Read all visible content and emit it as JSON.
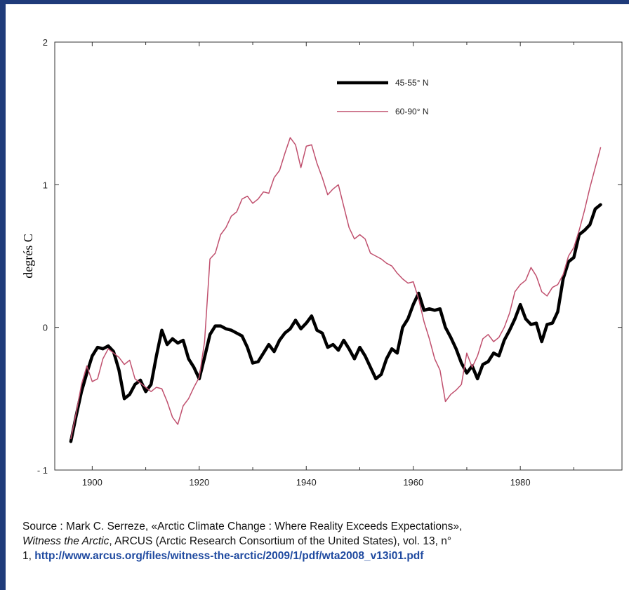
{
  "chart_data": {
    "type": "line",
    "title": "",
    "xlabel": "",
    "ylabel": "degrés C",
    "xlim": [
      1893,
      1999
    ],
    "ylim": [
      -1,
      2
    ],
    "x_ticks": [
      "1900",
      "1920",
      "1940",
      "1960",
      "1980"
    ],
    "y_ticks": [
      "- 1",
      "0",
      "1",
      "2"
    ],
    "legend_position": "top-right",
    "series": [
      {
        "name": "45-55° N",
        "color": "#000000",
        "style": "thick",
        "points": [
          [
            1896,
            -0.8
          ],
          [
            1897,
            -0.62
          ],
          [
            1898,
            -0.45
          ],
          [
            1899,
            -0.32
          ],
          [
            1900,
            -0.2
          ],
          [
            1901,
            -0.14
          ],
          [
            1902,
            -0.15
          ],
          [
            1903,
            -0.13
          ],
          [
            1904,
            -0.17
          ],
          [
            1905,
            -0.3
          ],
          [
            1906,
            -0.5
          ],
          [
            1907,
            -0.47
          ],
          [
            1908,
            -0.4
          ],
          [
            1909,
            -0.37
          ],
          [
            1910,
            -0.45
          ],
          [
            1911,
            -0.4
          ],
          [
            1912,
            -0.2
          ],
          [
            1913,
            -0.02
          ],
          [
            1914,
            -0.12
          ],
          [
            1915,
            -0.08
          ],
          [
            1916,
            -0.11
          ],
          [
            1917,
            -0.09
          ],
          [
            1918,
            -0.22
          ],
          [
            1919,
            -0.28
          ],
          [
            1920,
            -0.36
          ],
          [
            1921,
            -0.21
          ],
          [
            1922,
            -0.05
          ],
          [
            1923,
            0.01
          ],
          [
            1924,
            0.01
          ],
          [
            1925,
            -0.01
          ],
          [
            1926,
            -0.02
          ],
          [
            1927,
            -0.04
          ],
          [
            1928,
            -0.06
          ],
          [
            1929,
            -0.14
          ],
          [
            1930,
            -0.25
          ],
          [
            1931,
            -0.24
          ],
          [
            1932,
            -0.18
          ],
          [
            1933,
            -0.12
          ],
          [
            1934,
            -0.17
          ],
          [
            1935,
            -0.09
          ],
          [
            1936,
            -0.04
          ],
          [
            1937,
            -0.01
          ],
          [
            1938,
            0.05
          ],
          [
            1939,
            -0.01
          ],
          [
            1940,
            0.03
          ],
          [
            1941,
            0.08
          ],
          [
            1942,
            -0.02
          ],
          [
            1943,
            -0.04
          ],
          [
            1944,
            -0.14
          ],
          [
            1945,
            -0.12
          ],
          [
            1946,
            -0.16
          ],
          [
            1947,
            -0.09
          ],
          [
            1948,
            -0.15
          ],
          [
            1949,
            -0.22
          ],
          [
            1950,
            -0.14
          ],
          [
            1951,
            -0.2
          ],
          [
            1952,
            -0.28
          ],
          [
            1953,
            -0.36
          ],
          [
            1954,
            -0.33
          ],
          [
            1955,
            -0.22
          ],
          [
            1956,
            -0.15
          ],
          [
            1957,
            -0.18
          ],
          [
            1958,
            0.0
          ],
          [
            1959,
            0.06
          ],
          [
            1960,
            0.16
          ],
          [
            1961,
            0.24
          ],
          [
            1962,
            0.12
          ],
          [
            1963,
            0.13
          ],
          [
            1964,
            0.12
          ],
          [
            1965,
            0.13
          ],
          [
            1966,
            0.0
          ],
          [
            1967,
            -0.07
          ],
          [
            1968,
            -0.15
          ],
          [
            1969,
            -0.25
          ],
          [
            1970,
            -0.32
          ],
          [
            1971,
            -0.27
          ],
          [
            1972,
            -0.36
          ],
          [
            1973,
            -0.26
          ],
          [
            1974,
            -0.24
          ],
          [
            1975,
            -0.18
          ],
          [
            1976,
            -0.2
          ],
          [
            1977,
            -0.09
          ],
          [
            1978,
            -0.02
          ],
          [
            1979,
            0.06
          ],
          [
            1980,
            0.16
          ],
          [
            1981,
            0.06
          ],
          [
            1982,
            0.02
          ],
          [
            1983,
            0.03
          ],
          [
            1984,
            -0.1
          ],
          [
            1985,
            0.02
          ],
          [
            1986,
            0.03
          ],
          [
            1987,
            0.11
          ],
          [
            1988,
            0.34
          ],
          [
            1989,
            0.46
          ],
          [
            1990,
            0.49
          ],
          [
            1991,
            0.65
          ],
          [
            1992,
            0.68
          ],
          [
            1993,
            0.72
          ],
          [
            1994,
            0.83
          ],
          [
            1995,
            0.86
          ]
        ]
      },
      {
        "name": "60-90° N",
        "color": "#c0506e",
        "style": "thin",
        "points": [
          [
            1896,
            -0.78
          ],
          [
            1897,
            -0.6
          ],
          [
            1898,
            -0.4
          ],
          [
            1899,
            -0.27
          ],
          [
            1900,
            -0.38
          ],
          [
            1901,
            -0.36
          ],
          [
            1902,
            -0.22
          ],
          [
            1903,
            -0.15
          ],
          [
            1904,
            -0.18
          ],
          [
            1905,
            -0.21
          ],
          [
            1906,
            -0.26
          ],
          [
            1907,
            -0.23
          ],
          [
            1908,
            -0.36
          ],
          [
            1909,
            -0.39
          ],
          [
            1910,
            -0.42
          ],
          [
            1911,
            -0.45
          ],
          [
            1912,
            -0.42
          ],
          [
            1913,
            -0.43
          ],
          [
            1914,
            -0.52
          ],
          [
            1915,
            -0.63
          ],
          [
            1916,
            -0.68
          ],
          [
            1917,
            -0.55
          ],
          [
            1918,
            -0.5
          ],
          [
            1919,
            -0.42
          ],
          [
            1920,
            -0.35
          ],
          [
            1921,
            -0.1
          ],
          [
            1922,
            0.48
          ],
          [
            1923,
            0.52
          ],
          [
            1924,
            0.65
          ],
          [
            1925,
            0.7
          ],
          [
            1926,
            0.78
          ],
          [
            1927,
            0.81
          ],
          [
            1928,
            0.9
          ],
          [
            1929,
            0.92
          ],
          [
            1930,
            0.87
          ],
          [
            1931,
            0.9
          ],
          [
            1932,
            0.95
          ],
          [
            1933,
            0.94
          ],
          [
            1934,
            1.05
          ],
          [
            1935,
            1.1
          ],
          [
            1936,
            1.22
          ],
          [
            1937,
            1.33
          ],
          [
            1938,
            1.28
          ],
          [
            1939,
            1.12
          ],
          [
            1940,
            1.27
          ],
          [
            1941,
            1.28
          ],
          [
            1942,
            1.15
          ],
          [
            1943,
            1.05
          ],
          [
            1944,
            0.93
          ],
          [
            1945,
            0.97
          ],
          [
            1946,
            1.0
          ],
          [
            1947,
            0.85
          ],
          [
            1948,
            0.7
          ],
          [
            1949,
            0.62
          ],
          [
            1950,
            0.65
          ],
          [
            1951,
            0.62
          ],
          [
            1952,
            0.52
          ],
          [
            1953,
            0.5
          ],
          [
            1954,
            0.48
          ],
          [
            1955,
            0.45
          ],
          [
            1956,
            0.43
          ],
          [
            1957,
            0.38
          ],
          [
            1958,
            0.34
          ],
          [
            1959,
            0.31
          ],
          [
            1960,
            0.32
          ],
          [
            1961,
            0.2
          ],
          [
            1962,
            0.04
          ],
          [
            1963,
            -0.08
          ],
          [
            1964,
            -0.22
          ],
          [
            1965,
            -0.3
          ],
          [
            1966,
            -0.52
          ],
          [
            1967,
            -0.47
          ],
          [
            1968,
            -0.44
          ],
          [
            1969,
            -0.4
          ],
          [
            1970,
            -0.18
          ],
          [
            1971,
            -0.28
          ],
          [
            1972,
            -0.2
          ],
          [
            1973,
            -0.08
          ],
          [
            1974,
            -0.05
          ],
          [
            1975,
            -0.1
          ],
          [
            1976,
            -0.07
          ],
          [
            1977,
            0.0
          ],
          [
            1978,
            0.1
          ],
          [
            1979,
            0.25
          ],
          [
            1980,
            0.3
          ],
          [
            1981,
            0.33
          ],
          [
            1982,
            0.42
          ],
          [
            1983,
            0.36
          ],
          [
            1984,
            0.25
          ],
          [
            1985,
            0.22
          ],
          [
            1986,
            0.28
          ],
          [
            1987,
            0.3
          ],
          [
            1988,
            0.37
          ],
          [
            1989,
            0.5
          ],
          [
            1990,
            0.56
          ],
          [
            1991,
            0.68
          ],
          [
            1992,
            0.82
          ],
          [
            1993,
            0.98
          ],
          [
            1994,
            1.12
          ],
          [
            1995,
            1.26
          ]
        ]
      }
    ]
  },
  "caption": {
    "line1": "Source : Mark C. Serreze, «Arctic Climate Change : Where Reality Exceeds Expectations»,",
    "italic_part": "Witness the Arctic",
    "line2_rest": ", ARCUS (Arctic Research Consortium of the United States), vol. 13, n°",
    "line3_prefix": "1,",
    "link_text": "http://www.arcus.org/files/witness-the-arctic/2009/1/pdf/wta2008_v13i01.pdf"
  }
}
